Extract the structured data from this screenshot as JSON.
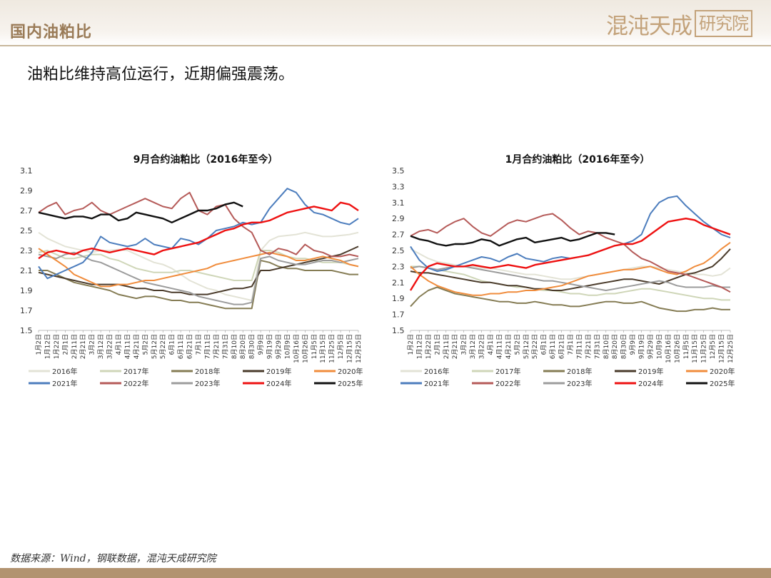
{
  "header": {
    "section_title": "国内油粕比",
    "logo_main": "混沌天成",
    "logo_seal": "研究院"
  },
  "subtitle": "油粕比维持高位运行，近期偏强震荡。",
  "source": "数据来源：Wind，钢联数据，混沌天成研究院",
  "colors": {
    "2016年": "#e3e3d6",
    "2017年": "#cfd6b8",
    "2018年": "#857c54",
    "2019年": "#4a3b2b",
    "2020年": "#f08c3c",
    "2021年": "#4c7dbd",
    "2022年": "#b55a58",
    "2023年": "#9c9c9c",
    "2024年": "#ee1111",
    "2025年": "#111111"
  },
  "chart_data": [
    {
      "type": "line",
      "title": "9月合约油粕比（2016年至今）",
      "ylim": [
        1.5,
        3.1
      ],
      "yticks": [
        "3.1",
        "2.9",
        "2.7",
        "2.5",
        "2.3",
        "2.1",
        "1.9",
        "1.7",
        "1.5"
      ],
      "x": [
        "1月2日",
        "1月12日",
        "1月22日",
        "2月1日",
        "2月11日",
        "2月21日",
        "3月2日",
        "3月12日",
        "3月22日",
        "4月1日",
        "4月11日",
        "4月21日",
        "5月2日",
        "5月12日",
        "5月22日",
        "6月1日",
        "6月11日",
        "6月21日",
        "7月1日",
        "7月11日",
        "7月21日",
        "7月31日",
        "8月10日",
        "8月20日",
        "8月30日",
        "9月9日",
        "9月19日",
        "9月29日",
        "10月9日",
        "10月16日",
        "10月26日",
        "11月5日",
        "11月15日",
        "11月25日",
        "12月5日",
        "12月15日",
        "12月25日"
      ],
      "series": [
        {
          "name": "2016年",
          "values": [
            2.48,
            2.42,
            2.38,
            2.34,
            2.32,
            2.3,
            2.28,
            2.3,
            2.3,
            2.31,
            2.3,
            2.26,
            2.22,
            2.18,
            2.16,
            2.12,
            2.06,
            2.0,
            1.96,
            1.92,
            1.9,
            1.86,
            1.84,
            1.82,
            1.8,
            2.3,
            2.4,
            2.44,
            2.45,
            2.46,
            2.48,
            2.46,
            2.44,
            2.44,
            2.45,
            2.46,
            2.48
          ]
        },
        {
          "name": "2017年",
          "values": [
            2.28,
            2.3,
            2.26,
            2.22,
            2.22,
            2.24,
            2.26,
            2.26,
            2.22,
            2.2,
            2.16,
            2.12,
            2.1,
            2.08,
            2.08,
            2.08,
            2.1,
            2.1,
            2.08,
            2.06,
            2.04,
            2.02,
            2.0,
            2.0,
            2.0,
            2.3,
            2.3,
            2.28,
            2.24,
            2.22,
            2.22,
            2.2,
            2.18,
            2.18,
            2.18,
            2.16,
            2.14
          ]
        },
        {
          "name": "2018年",
          "values": [
            2.1,
            2.1,
            2.06,
            2.02,
            1.98,
            1.96,
            1.94,
            1.92,
            1.9,
            1.86,
            1.84,
            1.82,
            1.84,
            1.84,
            1.82,
            1.8,
            1.8,
            1.78,
            1.78,
            1.76,
            1.74,
            1.72,
            1.72,
            1.72,
            1.72,
            2.2,
            2.18,
            2.14,
            2.12,
            2.12,
            2.1,
            2.1,
            2.1,
            2.1,
            2.08,
            2.06,
            2.06
          ]
        },
        {
          "name": "2019年",
          "values": [
            2.08,
            2.06,
            2.04,
            2.02,
            2.0,
            1.98,
            1.96,
            1.96,
            1.96,
            1.96,
            1.94,
            1.92,
            1.92,
            1.9,
            1.9,
            1.88,
            1.88,
            1.86,
            1.86,
            1.86,
            1.88,
            1.9,
            1.92,
            1.92,
            1.94,
            2.1,
            2.1,
            2.12,
            2.14,
            2.16,
            2.18,
            2.2,
            2.22,
            2.24,
            2.26,
            2.3,
            2.34
          ]
        },
        {
          "name": "2020年",
          "values": [
            2.32,
            2.26,
            2.2,
            2.14,
            2.06,
            2.02,
            1.98,
            1.94,
            1.94,
            1.96,
            1.96,
            1.98,
            2.0,
            2.0,
            2.02,
            2.04,
            2.06,
            2.08,
            2.1,
            2.12,
            2.16,
            2.18,
            2.2,
            2.22,
            2.24,
            2.26,
            2.28,
            2.26,
            2.24,
            2.2,
            2.2,
            2.22,
            2.24,
            2.22,
            2.2,
            2.16,
            2.14
          ]
        },
        {
          "name": "2021年",
          "values": [
            2.14,
            2.02,
            2.06,
            2.1,
            2.14,
            2.18,
            2.28,
            2.44,
            2.38,
            2.36,
            2.34,
            2.36,
            2.42,
            2.36,
            2.34,
            2.32,
            2.42,
            2.4,
            2.36,
            2.42,
            2.5,
            2.52,
            2.54,
            2.58,
            2.56,
            2.58,
            2.72,
            2.82,
            2.92,
            2.88,
            2.76,
            2.68,
            2.66,
            2.62,
            2.58,
            2.56,
            2.62
          ]
        },
        {
          "name": "2022年",
          "values": [
            2.68,
            2.74,
            2.78,
            2.66,
            2.7,
            2.72,
            2.78,
            2.7,
            2.66,
            2.7,
            2.74,
            2.78,
            2.82,
            2.78,
            2.74,
            2.72,
            2.82,
            2.88,
            2.7,
            2.66,
            2.74,
            2.76,
            2.62,
            2.54,
            2.48,
            2.3,
            2.26,
            2.32,
            2.3,
            2.26,
            2.36,
            2.3,
            2.28,
            2.24,
            2.24,
            2.26,
            2.24
          ]
        },
        {
          "name": "2023年",
          "values": [
            2.26,
            2.24,
            2.22,
            2.26,
            2.28,
            2.24,
            2.2,
            2.18,
            2.14,
            2.1,
            2.06,
            2.02,
            1.98,
            1.96,
            1.94,
            1.92,
            1.9,
            1.88,
            1.84,
            1.82,
            1.8,
            1.78,
            1.76,
            1.76,
            1.78,
            2.22,
            2.24,
            2.2,
            2.18,
            2.16,
            2.16,
            2.18,
            2.2,
            2.2,
            2.18,
            2.2,
            2.22
          ]
        },
        {
          "name": "2024年",
          "values": [
            2.22,
            2.28,
            2.3,
            2.28,
            2.26,
            2.3,
            2.32,
            2.3,
            2.28,
            2.3,
            2.32,
            2.3,
            2.28,
            2.26,
            2.3,
            2.32,
            2.34,
            2.36,
            2.38,
            2.42,
            2.46,
            2.5,
            2.52,
            2.56,
            2.58,
            2.58,
            2.6,
            2.64,
            2.68,
            2.7,
            2.72,
            2.74,
            2.72,
            2.7,
            2.78,
            2.76,
            2.7
          ]
        },
        {
          "name": "2025年",
          "values": [
            2.68,
            2.66,
            2.64,
            2.62,
            2.64,
            2.64,
            2.62,
            2.66,
            2.66,
            2.6,
            2.62,
            2.68,
            2.66,
            2.64,
            2.62,
            2.58,
            2.62,
            2.66,
            2.7,
            2.7,
            2.72,
            2.76,
            2.78,
            2.74,
            null,
            null,
            null,
            null,
            null,
            null,
            null,
            null,
            null,
            null,
            null,
            null,
            null
          ]
        }
      ],
      "legend": [
        "2016年",
        "2017年",
        "2018年",
        "2019年",
        "2020年",
        "2021年",
        "2022年",
        "2023年",
        "2024年",
        "2025年"
      ],
      "legend_position": "bottom"
    },
    {
      "type": "line",
      "title": "1月合约油粕比（2016年至今）",
      "ylim": [
        1.5,
        3.5
      ],
      "yticks": [
        "3.5",
        "3.3",
        "3.1",
        "2.9",
        "2.7",
        "2.5",
        "2.3",
        "2.1",
        "1.9",
        "1.7",
        "1.5"
      ],
      "x": [
        "1月2日",
        "1月12日",
        "1月22日",
        "2月1日",
        "2月11日",
        "2月21日",
        "3月2日",
        "3月12日",
        "3月22日",
        "4月1日",
        "4月11日",
        "4月21日",
        "5月2日",
        "5月12日",
        "5月22日",
        "6月1日",
        "6月11日",
        "6月21日",
        "7月1日",
        "7月11日",
        "7月21日",
        "7月31日",
        "8月10日",
        "8月20日",
        "8月30日",
        "9月9日",
        "9月19日",
        "9月29日",
        "10月9日",
        "10月16日",
        "10月26日",
        "11月5日",
        "11月15日",
        "11月25日",
        "12月5日",
        "12月15日",
        "12月25日"
      ],
      "series": [
        {
          "name": "2016年",
          "values": [
            2.52,
            2.46,
            2.4,
            2.36,
            2.34,
            2.32,
            2.3,
            2.3,
            2.28,
            2.28,
            2.26,
            2.24,
            2.22,
            2.2,
            2.2,
            2.18,
            2.16,
            2.14,
            2.14,
            2.16,
            2.18,
            2.2,
            2.22,
            2.24,
            2.26,
            2.28,
            2.3,
            2.3,
            2.28,
            2.26,
            2.24,
            2.22,
            2.2,
            2.2,
            2.18,
            2.2,
            2.28
          ]
        },
        {
          "name": "2017年",
          "values": [
            2.3,
            2.3,
            2.28,
            2.26,
            2.24,
            2.22,
            2.2,
            2.16,
            2.12,
            2.1,
            2.08,
            2.06,
            2.04,
            2.04,
            2.02,
            2.0,
            2.0,
            1.98,
            1.96,
            1.96,
            1.94,
            1.94,
            1.96,
            1.96,
            1.98,
            2.0,
            2.02,
            2.02,
            2.0,
            1.98,
            1.96,
            1.94,
            1.92,
            1.9,
            1.9,
            1.88,
            1.88
          ]
        },
        {
          "name": "2018年",
          "values": [
            1.8,
            1.92,
            2.0,
            2.04,
            2.0,
            1.96,
            1.94,
            1.92,
            1.9,
            1.88,
            1.86,
            1.86,
            1.84,
            1.84,
            1.86,
            1.84,
            1.82,
            1.82,
            1.8,
            1.8,
            1.82,
            1.84,
            1.86,
            1.86,
            1.84,
            1.84,
            1.86,
            1.82,
            1.78,
            1.76,
            1.74,
            1.74,
            1.76,
            1.76,
            1.78,
            1.76,
            1.76
          ]
        },
        {
          "name": "2019年",
          "values": [
            2.24,
            2.22,
            2.22,
            2.2,
            2.18,
            2.16,
            2.14,
            2.12,
            2.1,
            2.1,
            2.08,
            2.06,
            2.06,
            2.04,
            2.02,
            2.02,
            2.0,
            2.0,
            2.02,
            2.04,
            2.06,
            2.08,
            2.1,
            2.12,
            2.14,
            2.14,
            2.12,
            2.1,
            2.08,
            2.12,
            2.16,
            2.2,
            2.22,
            2.26,
            2.3,
            2.4,
            2.52
          ]
        },
        {
          "name": "2020年",
          "values": [
            2.3,
            2.2,
            2.12,
            2.06,
            2.02,
            1.98,
            1.96,
            1.94,
            1.94,
            1.96,
            1.96,
            1.98,
            1.98,
            2.0,
            2.0,
            2.02,
            2.04,
            2.06,
            2.1,
            2.14,
            2.18,
            2.2,
            2.22,
            2.24,
            2.26,
            2.26,
            2.28,
            2.3,
            2.26,
            2.22,
            2.2,
            2.24,
            2.3,
            2.34,
            2.42,
            2.52,
            2.6
          ]
        },
        {
          "name": "2021年",
          "values": [
            2.55,
            2.38,
            2.28,
            2.24,
            2.26,
            2.3,
            2.34,
            2.38,
            2.42,
            2.4,
            2.36,
            2.42,
            2.46,
            2.4,
            2.38,
            2.36,
            2.4,
            2.42,
            2.4,
            2.42,
            2.44,
            2.48,
            2.52,
            2.56,
            2.58,
            2.62,
            2.7,
            2.96,
            3.1,
            3.16,
            3.18,
            3.06,
            2.96,
            2.86,
            2.78,
            2.7,
            2.66
          ]
        },
        {
          "name": "2022年",
          "values": [
            2.68,
            2.74,
            2.76,
            2.72,
            2.8,
            2.86,
            2.9,
            2.8,
            2.72,
            2.68,
            2.76,
            2.84,
            2.88,
            2.86,
            2.9,
            2.94,
            2.96,
            2.88,
            2.78,
            2.7,
            2.74,
            2.72,
            2.66,
            2.62,
            2.58,
            2.48,
            2.4,
            2.36,
            2.3,
            2.24,
            2.22,
            2.2,
            2.16,
            2.12,
            2.08,
            2.04,
            1.98
          ]
        },
        {
          "name": "2023年",
          "values": [
            2.28,
            2.3,
            2.28,
            2.26,
            2.28,
            2.3,
            2.3,
            2.28,
            2.26,
            2.24,
            2.22,
            2.2,
            2.18,
            2.16,
            2.14,
            2.12,
            2.12,
            2.1,
            2.08,
            2.06,
            2.04,
            2.02,
            2.0,
            2.02,
            2.04,
            2.06,
            2.08,
            2.1,
            2.12,
            2.1,
            2.06,
            2.04,
            2.04,
            2.04,
            2.06,
            2.04,
            2.04
          ]
        },
        {
          "name": "2024年",
          "values": [
            2.0,
            2.18,
            2.3,
            2.34,
            2.32,
            2.3,
            2.3,
            2.32,
            2.3,
            2.28,
            2.3,
            2.32,
            2.3,
            2.28,
            2.32,
            2.34,
            2.36,
            2.38,
            2.4,
            2.42,
            2.44,
            2.48,
            2.52,
            2.56,
            2.58,
            2.58,
            2.62,
            2.7,
            2.78,
            2.86,
            2.88,
            2.9,
            2.88,
            2.82,
            2.78,
            2.74,
            2.7
          ]
        },
        {
          "name": "2025年",
          "values": [
            2.68,
            2.64,
            2.62,
            2.58,
            2.56,
            2.58,
            2.58,
            2.6,
            2.64,
            2.62,
            2.56,
            2.6,
            2.64,
            2.66,
            2.6,
            2.62,
            2.64,
            2.66,
            2.62,
            2.64,
            2.68,
            2.72,
            2.72,
            2.7,
            null,
            null,
            null,
            null,
            null,
            null,
            null,
            null,
            null,
            null,
            null,
            null,
            null
          ]
        }
      ],
      "legend": [
        "2016年",
        "2017年",
        "2018年",
        "2019年",
        "2020年",
        "2021年",
        "2022年",
        "2023年",
        "2024年",
        "2025年"
      ],
      "legend_position": "bottom"
    }
  ]
}
